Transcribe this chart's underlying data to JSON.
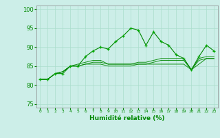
{
  "xlabel": "Humidité relative (%)",
  "background_color": "#cceee8",
  "grid_color": "#aaddcc",
  "line_color": "#008800",
  "marker_color": "#00aa00",
  "xlim": [
    -0.5,
    23.5
  ],
  "ylim": [
    74,
    101
  ],
  "yticks": [
    75,
    80,
    85,
    90,
    95,
    100
  ],
  "xticks": [
    0,
    1,
    2,
    3,
    4,
    5,
    6,
    7,
    8,
    9,
    10,
    11,
    12,
    13,
    14,
    15,
    16,
    17,
    18,
    19,
    20,
    21,
    22,
    23
  ],
  "series": [
    [
      81.5,
      81.5,
      83,
      83,
      85,
      85,
      87.5,
      89,
      90,
      89.5,
      91.5,
      93,
      95,
      94.5,
      90.5,
      94,
      91.5,
      90.5,
      88,
      87,
      84,
      87.5,
      90.5,
      89
    ],
    [
      81.5,
      81.5,
      83,
      83.5,
      85,
      85.5,
      86,
      86.5,
      86.5,
      85.5,
      85.5,
      85.5,
      85.5,
      86,
      86,
      86.5,
      87,
      87,
      87,
      87,
      84,
      87,
      87.5,
      87.5
    ],
    [
      81.5,
      81.5,
      83,
      83.5,
      85,
      85,
      85.5,
      86,
      86,
      85.5,
      85.5,
      85.5,
      85.5,
      85.5,
      85.5,
      86,
      86.5,
      86.5,
      86.5,
      86.5,
      84,
      86.5,
      87,
      87
    ],
    [
      81.5,
      81.5,
      83,
      83.5,
      85,
      85,
      85.5,
      85.5,
      85.5,
      85,
      85,
      85,
      85,
      85.5,
      85.5,
      85.5,
      85.5,
      85.5,
      85.5,
      85.5,
      84,
      85.5,
      87,
      87
    ]
  ]
}
